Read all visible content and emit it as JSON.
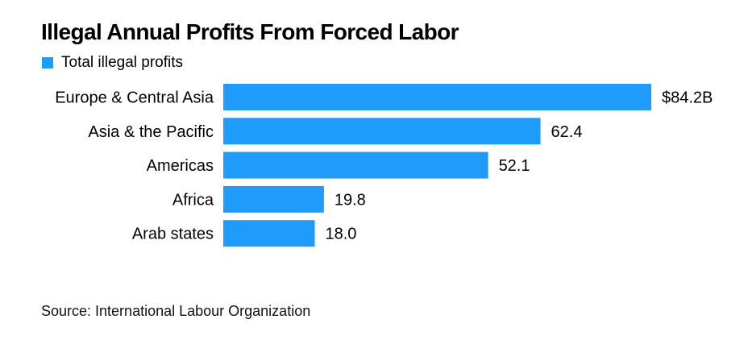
{
  "chart_data": {
    "type": "bar",
    "orientation": "horizontal",
    "title": "Illegal Annual Profits From Forced Labor",
    "legend": [
      {
        "name": "Total illegal profits",
        "color": "#1f9bfb"
      }
    ],
    "categories": [
      "Europe & Central Asia",
      "Asia & the Pacific",
      "Americas",
      "Africa",
      "Arab states"
    ],
    "series": [
      {
        "name": "Total illegal profits",
        "values": [
          84.2,
          62.4,
          52.1,
          19.8,
          18.0
        ]
      }
    ],
    "value_labels": [
      "$84.2B",
      "62.4",
      "52.1",
      "19.8",
      "18.0"
    ],
    "xlim": [
      0,
      84.2
    ],
    "xlabel": "",
    "ylabel": "",
    "grid": false,
    "legend_position": "top-left"
  },
  "source": "Source: International Labour Organization",
  "colors": {
    "bar": "#1f9bfb"
  }
}
